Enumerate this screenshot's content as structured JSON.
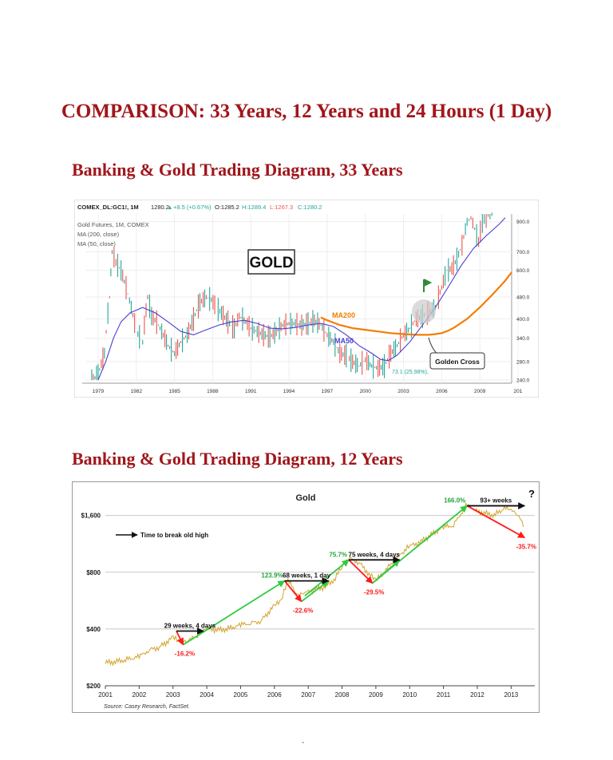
{
  "page": {
    "title": "COMPARISON:  33 Years, 12 Years and 24 Hours (1 Day)",
    "section1_title": "Banking & Gold Trading Diagram,  33 Years",
    "section2_title": "Banking & Gold Trading Diagram,  12 Years",
    "footer_mark": "-"
  },
  "chart_data": [
    {
      "type": "line",
      "header": {
        "symbol": "COMEX_DL:GC1!, 1M",
        "last": "1280.2",
        "change": "+8.5 (+0.67%)",
        "open": "O:1285.2",
        "high": "H:1289.4",
        "low": "L:1267.3",
        "close": "C:1280.2"
      },
      "legend": [
        "Gold Futures, 1M, COMEX",
        "MA (200, close)",
        "MA (50, close)"
      ],
      "title_box": "GOLD",
      "x_tick_labels": [
        "1979",
        "1982",
        "1985",
        "1988",
        "1991",
        "1994",
        "1997",
        "2000",
        "2003",
        "2006",
        "2009",
        "201"
      ],
      "y_tick_labels": [
        "240.0",
        "280.0",
        "340.0",
        "400.0",
        "480.0",
        "600.0",
        "700.0",
        "900.0"
      ],
      "y_scale": "log",
      "xlim": [
        1978.0,
        2011.5
      ],
      "ylim": [
        240,
        960
      ],
      "annotations": {
        "ma200_label": "MA200",
        "ma50_label": "MA50",
        "golden_cross": "Golden Cross",
        "low_marker": "73.1 (25.98%),"
      },
      "colors": {
        "price_up": "#26a69a",
        "price_down": "#ef5350",
        "ma200": "#f57c00",
        "ma50": "#4a3fd0",
        "header_high": "#26a69a",
        "header_low": "#ef5350"
      },
      "series": [
        {
          "name": "Gold Futures, 1M, COMEX",
          "x": [
            1978.5,
            1979.0,
            1979.5,
            1979.9,
            1980.1,
            1980.4,
            1980.8,
            1981.2,
            1981.6,
            1982.0,
            1982.5,
            1982.9,
            1983.2,
            1983.6,
            1984.0,
            1984.5,
            1985.0,
            1985.5,
            1986.0,
            1986.5,
            1987.0,
            1987.5,
            1987.9,
            1988.3,
            1988.7,
            1989.2,
            1989.7,
            1990.1,
            1990.6,
            1991.0,
            1991.5,
            1992.0,
            1992.5,
            1993.0,
            1993.5,
            1994.0,
            1994.5,
            1995.0,
            1995.5,
            1996.0,
            1996.5,
            1997.0,
            1997.5,
            1998.0,
            1998.5,
            1999.0,
            1999.5,
            2000.0,
            2000.5,
            2001.0,
            2001.5,
            2002.0,
            2002.5,
            2003.0,
            2003.5,
            2004.0,
            2004.5,
            2005.0,
            2005.5,
            2006.0,
            2006.4,
            2006.8,
            2007.2,
            2007.6,
            2008.0,
            2008.3,
            2008.6,
            2008.9,
            2009.2,
            2009.5,
            2009.8,
            2010.1
          ],
          "values": [
            240,
            250,
            300,
            480,
            700,
            640,
            600,
            520,
            440,
            360,
            330,
            480,
            410,
            390,
            360,
            320,
            300,
            330,
            350,
            400,
            460,
            480,
            470,
            440,
            420,
            390,
            370,
            410,
            390,
            370,
            360,
            350,
            345,
            360,
            380,
            385,
            385,
            380,
            385,
            395,
            380,
            350,
            330,
            300,
            295,
            280,
            270,
            285,
            270,
            265,
            270,
            300,
            320,
            350,
            370,
            400,
            410,
            425,
            440,
            520,
            600,
            610,
            660,
            740,
            900,
            930,
            850,
            760,
            900,
            940,
            960,
            960
          ]
        },
        {
          "name": "MA (200, close)",
          "x": [
            1996.5,
            1997.0,
            1998.0,
            1999.0,
            2000.0,
            2001.0,
            2002.0,
            2003.0,
            2004.0,
            2005.0,
            2005.5,
            2006.0,
            2006.5,
            2007.0,
            2008.0,
            2009.0,
            2010.0,
            2011.0,
            2011.5
          ],
          "values": [
            405,
            395,
            380,
            370,
            365,
            360,
            355,
            352,
            350,
            350,
            352,
            355,
            362,
            372,
            400,
            440,
            490,
            550,
            590
          ]
        },
        {
          "name": "MA (50, close)",
          "x": [
            1979.0,
            1979.6,
            1980.2,
            1980.8,
            1981.5,
            1982.5,
            1983.5,
            1984.5,
            1985.5,
            1986.5,
            1987.5,
            1988.5,
            1989.5,
            1990.5,
            1991.5,
            1992.5,
            1993.5,
            1994.5,
            1995.5,
            1996.5,
            1997.5,
            1998.5,
            1999.5,
            2000.5,
            2001.2,
            2001.8,
            2002.5,
            2003.5,
            2004.5,
            2005.5,
            2006.5,
            2007.5,
            2008.5,
            2009.5,
            2010.5,
            2011.0
          ],
          "values": [
            240,
            280,
            340,
            390,
            420,
            440,
            420,
            390,
            360,
            350,
            365,
            380,
            390,
            395,
            385,
            370,
            368,
            372,
            380,
            385,
            375,
            350,
            320,
            300,
            285,
            282,
            295,
            330,
            380,
            440,
            520,
            620,
            720,
            800,
            880,
            930
          ]
        }
      ]
    },
    {
      "type": "line",
      "title": "Gold",
      "source": "Source: Casey Research, FactSet.",
      "legend_arrow_label": "Time to break old high",
      "y_scale": "log",
      "y_tick_labels": [
        "$200",
        "$400",
        "$800",
        "$1,600"
      ],
      "x_tick_labels": [
        "2001",
        "2002",
        "2003",
        "2004",
        "2005",
        "2006",
        "2007",
        "2008",
        "2009",
        "2010",
        "2011",
        "2012",
        "2013"
      ],
      "xlim": [
        2001.0,
        2013.7
      ],
      "ylim": [
        200,
        2200
      ],
      "colors": {
        "price": "#d4a32e",
        "rise": "#2ecc40",
        "drop": "#ff1a1a",
        "label_green": "#21a53b",
        "label_red": "#ff1a1a"
      },
      "series": [
        {
          "name": "Gold",
          "x": [
            2001.0,
            2001.3,
            2001.6,
            2002.0,
            2002.3,
            2002.6,
            2003.0,
            2003.2,
            2003.5,
            2003.8,
            2004.0,
            2004.3,
            2004.6,
            2005.0,
            2005.3,
            2005.6,
            2006.0,
            2006.2,
            2006.4,
            2006.7,
            2006.9,
            2007.2,
            2007.5,
            2007.8,
            2008.0,
            2008.2,
            2008.5,
            2008.8,
            2009.0,
            2009.3,
            2009.6,
            2010.0,
            2010.3,
            2010.6,
            2011.0,
            2011.3,
            2011.7,
            2011.9,
            2012.2,
            2012.5,
            2012.8,
            2013.0,
            2013.2,
            2013.4
          ],
          "values": [
            265,
            268,
            275,
            285,
            310,
            320,
            360,
            340,
            350,
            375,
            405,
            395,
            400,
            420,
            430,
            440,
            530,
            560,
            720,
            600,
            620,
            650,
            670,
            740,
            860,
            950,
            900,
            780,
            720,
            820,
            950,
            1100,
            1150,
            1250,
            1390,
            1420,
            1820,
            1700,
            1650,
            1600,
            1750,
            1700,
            1600,
            1380
          ]
        }
      ],
      "arrows": {
        "black": [
          {
            "label": "29 weeks, 4 days",
            "x0": 2003.1,
            "y0": 390,
            "x1": 2003.9,
            "y1": 390
          },
          {
            "label": "68 weeks, 1 day",
            "x0": 2006.3,
            "y0": 720,
            "x1": 2007.6,
            "y1": 720
          },
          {
            "label": "75 weeks, 4 days",
            "x0": 2008.2,
            "y0": 930,
            "x1": 2009.7,
            "y1": 930
          },
          {
            "label": "93+ weeks",
            "x0": 2011.7,
            "y0": 1800,
            "x1": 2013.4,
            "y1": 1800
          }
        ],
        "red": [
          {
            "label": "-16.2%",
            "x0": 2003.1,
            "y0": 390,
            "x1": 2003.3,
            "y1": 330
          },
          {
            "label": "-22.6%",
            "x0": 2006.3,
            "y0": 720,
            "x1": 2006.8,
            "y1": 560
          },
          {
            "label": "-29.5%",
            "x0": 2008.2,
            "y0": 930,
            "x1": 2008.9,
            "y1": 700
          },
          {
            "label": "-35.7%",
            "x0": 2011.7,
            "y0": 1800,
            "x1": 2013.4,
            "y1": 1220
          }
        ],
        "green": [
          {
            "label": "123.9%",
            "x0": 2003.3,
            "y0": 330,
            "x1": 2006.3,
            "y1": 720
          },
          {
            "label": "",
            "x0": 2006.8,
            "y0": 560,
            "x1": 2007.6,
            "y1": 720
          },
          {
            "label": "75.7%",
            "x0": 2006.9,
            "y0": 600,
            "x1": 2008.2,
            "y1": 930
          },
          {
            "label": "",
            "x0": 2008.9,
            "y0": 700,
            "x1": 2009.7,
            "y1": 930
          },
          {
            "label": "166.0%",
            "x0": 2008.9,
            "y0": 700,
            "x1": 2011.7,
            "y1": 1800
          }
        ]
      },
      "question_mark": "?"
    }
  ]
}
